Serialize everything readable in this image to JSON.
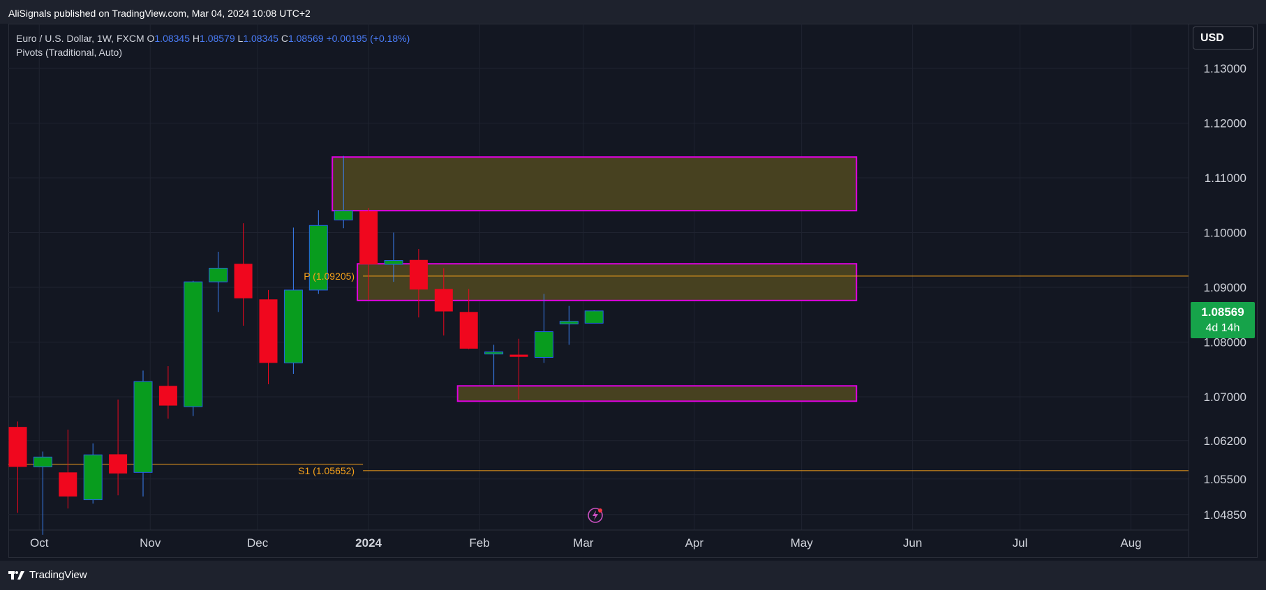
{
  "header": {
    "published_text": "AliSignals published on TradingView.com, Mar 04, 2024 10:08 UTC+2"
  },
  "legend": {
    "symbol": "Euro / U.S. Dollar, 1W, FXCM",
    "open_label": "O",
    "open": "1.08345",
    "high_label": "H",
    "high": "1.08579",
    "low_label": "L",
    "low": "1.08345",
    "close_label": "C",
    "close": "1.08569",
    "change": "+0.00195 (+0.18%)",
    "indicator": "Pivots (Traditional, Auto)"
  },
  "currency_button": "USD",
  "price_tag": {
    "price": "1.08569",
    "countdown": "4d 14h"
  },
  "footer": {
    "brand": "TradingView"
  },
  "colors": {
    "background": "#131722",
    "up": "#089c1e",
    "down": "#f0071e",
    "zone_fill": "#4a4321",
    "zone_border": "#e000e0",
    "pivot_line": "#f7a21b",
    "grid": "#1f2330"
  },
  "chart_data": {
    "type": "candlestick",
    "symbol": "EURUSD",
    "timeframe": "1W",
    "ylim": [
      1.047,
      1.1385
    ],
    "y_ticks": [
      "1.13000",
      "1.12000",
      "1.11000",
      "1.10000",
      "1.09000",
      "1.08000",
      "1.07000",
      "1.06200",
      "1.05500",
      "1.04850"
    ],
    "x_ticks": [
      "Oct",
      "Nov",
      "Dec",
      "2024",
      "Feb",
      "Mar",
      "Apr",
      "May",
      "Jun",
      "Jul",
      "Aug"
    ],
    "candles": [
      {
        "date": "2023-09-25",
        "open": 1.0645,
        "high": 1.0655,
        "low": 1.0488,
        "close": 1.0572
      },
      {
        "date": "2023-10-02",
        "open": 1.0572,
        "high": 1.06,
        "low": 1.0448,
        "close": 1.059
      },
      {
        "date": "2023-10-09",
        "open": 1.0562,
        "high": 1.064,
        "low": 1.0496,
        "close": 1.0518
      },
      {
        "date": "2023-10-16",
        "open": 1.0512,
        "high": 1.0615,
        "low": 1.0505,
        "close": 1.0594
      },
      {
        "date": "2023-10-23",
        "open": 1.0595,
        "high": 1.0695,
        "low": 1.052,
        "close": 1.056
      },
      {
        "date": "2023-10-30",
        "open": 1.0562,
        "high": 1.0748,
        "low": 1.0518,
        "close": 1.0728
      },
      {
        "date": "2023-11-06",
        "open": 1.072,
        "high": 1.0756,
        "low": 1.066,
        "close": 1.0684
      },
      {
        "date": "2023-11-13",
        "open": 1.0682,
        "high": 1.0912,
        "low": 1.0665,
        "close": 1.091
      },
      {
        "date": "2023-11-20",
        "open": 1.091,
        "high": 1.0965,
        "low": 1.0855,
        "close": 1.0935
      },
      {
        "date": "2023-11-27",
        "open": 1.0943,
        "high": 1.1017,
        "low": 1.083,
        "close": 1.088
      },
      {
        "date": "2023-12-04",
        "open": 1.0878,
        "high": 1.0895,
        "low": 1.0723,
        "close": 1.0762
      },
      {
        "date": "2023-12-11",
        "open": 1.0762,
        "high": 1.1009,
        "low": 1.0742,
        "close": 1.0895
      },
      {
        "date": "2023-12-18",
        "open": 1.0895,
        "high": 1.1041,
        "low": 1.0888,
        "close": 1.1013
      },
      {
        "date": "2023-12-25",
        "open": 1.1023,
        "high": 1.114,
        "low": 1.1008,
        "close": 1.104
      },
      {
        "date": "2024-01-01",
        "open": 1.1039,
        "high": 1.1045,
        "low": 1.0877,
        "close": 1.0942
      },
      {
        "date": "2024-01-08",
        "open": 1.0942,
        "high": 1.1,
        "low": 1.091,
        "close": 1.0949
      },
      {
        "date": "2024-01-15",
        "open": 1.095,
        "high": 1.097,
        "low": 1.0845,
        "close": 1.0896
      },
      {
        "date": "2024-01-22",
        "open": 1.0897,
        "high": 1.0935,
        "low": 1.0812,
        "close": 1.0856
      },
      {
        "date": "2024-01-29",
        "open": 1.0855,
        "high": 1.0897,
        "low": 1.0787,
        "close": 1.0788
      },
      {
        "date": "2024-02-05",
        "open": 1.0782,
        "high": 1.0795,
        "low": 1.0722,
        "close": 1.0782
      },
      {
        "date": "2024-02-12",
        "open": 1.0777,
        "high": 1.0806,
        "low": 1.0695,
        "close": 1.0773
      },
      {
        "date": "2024-02-19",
        "open": 1.0772,
        "high": 1.0888,
        "low": 1.0762,
        "close": 1.0819
      },
      {
        "date": "2024-02-26",
        "open": 1.0833,
        "high": 1.0866,
        "low": 1.0795,
        "close": 1.0838
      },
      {
        "date": "2024-03-04",
        "open": 1.08345,
        "high": 1.08579,
        "low": 1.08345,
        "close": 1.08569
      }
    ],
    "pivot_lines": [
      {
        "label": "P (1.09205)",
        "value": 1.09205
      },
      {
        "label": "S1 (1.05652)",
        "value": 1.05652
      }
    ],
    "zones": [
      {
        "from_date": "2023-12-25",
        "to_date": "2024-05-13",
        "top": 1.1138,
        "bottom": 1.104
      },
      {
        "from_date": "2024-01-01",
        "to_date": "2024-05-13",
        "top": 1.0943,
        "bottom": 1.0876
      },
      {
        "from_date": "2024-01-29",
        "to_date": "2024-05-13",
        "top": 1.072,
        "bottom": 1.0692
      }
    ]
  }
}
